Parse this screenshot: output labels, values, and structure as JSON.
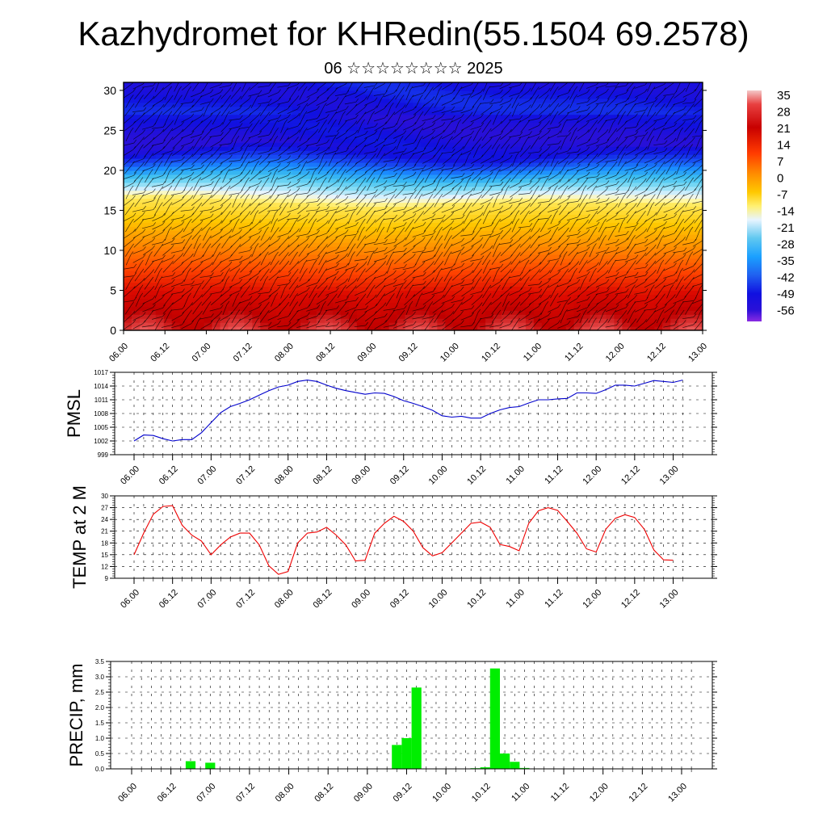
{
  "title": "Kazhydromet for KHRedin(55.1504 69.2578)",
  "subtitle": "06 ☆☆☆☆☆☆☆☆ 2025",
  "time_labels": [
    "06.00",
    "06.12",
    "07.00",
    "07.12",
    "08.00",
    "08.12",
    "09.00",
    "09.12",
    "10.00",
    "10.12",
    "11.00",
    "11.12",
    "12.00",
    "12.12",
    "13.00"
  ],
  "chart_data": [
    {
      "type": "heatmap",
      "title": "",
      "x_ticks": [
        "06.00",
        "06.12",
        "07.00",
        "07.12",
        "08.00",
        "08.12",
        "09.00",
        "09.12",
        "10.00",
        "10.12",
        "11.00",
        "11.12",
        "12.00",
        "12.12",
        "13.00"
      ],
      "y_ticks": [
        "0",
        "5",
        "10",
        "15",
        "20",
        "25",
        "30"
      ],
      "ylim": [
        0,
        31
      ],
      "colorbar_labels": [
        "35",
        "28",
        "21",
        "14",
        "7",
        "0",
        "-7",
        "-14",
        "-21",
        "-28",
        "-35",
        "-42",
        "-49",
        "-56"
      ],
      "value_range": [
        -60,
        38
      ],
      "freezing_level_rows": [
        16.5,
        16.6,
        16.4,
        16.0,
        15.8,
        15.5,
        15.3,
        15.4,
        15.7,
        16.0,
        16.1,
        16.0,
        15.8,
        15.7,
        15.6
      ],
      "upper_cold_rows": [
        22,
        22.5,
        23,
        23.5,
        23.5,
        23,
        22.5,
        22,
        21.5,
        21.5,
        22,
        22.5,
        23,
        23,
        23
      ]
    },
    {
      "type": "line",
      "ylabel": "PMSL",
      "ylim": [
        999,
        1017
      ],
      "y_ticks": [
        "999",
        "1002",
        "1005",
        "1008",
        "1011",
        "1014",
        "1017"
      ],
      "x_ticks": [
        "06.00",
        "06.12",
        "07.00",
        "07.12",
        "08.00",
        "08.12",
        "09.00",
        "09.12",
        "10.00",
        "10.12",
        "11.00",
        "11.12",
        "12.00",
        "12.12",
        "13.00"
      ],
      "color": "#0000cc",
      "values": [
        1002,
        1003.3,
        1003.2,
        1002.5,
        1002,
        1002.3,
        1002.3,
        1003.8,
        1006,
        1008.2,
        1009.5,
        1010.2,
        1011,
        1012,
        1013,
        1013.8,
        1014.2,
        1015,
        1015.3,
        1015,
        1014.2,
        1013.5,
        1013,
        1012.6,
        1012.2,
        1012.5,
        1012.4,
        1011.7,
        1010.8,
        1010.2,
        1009.5,
        1008.7,
        1007.5,
        1007.2,
        1007.4,
        1007,
        1007,
        1008,
        1008.8,
        1009.3,
        1009.5,
        1010.3,
        1011,
        1011,
        1011.2,
        1011.3,
        1012.5,
        1012.5,
        1012.4,
        1013.2,
        1014.2,
        1014.2,
        1014,
        1014.6,
        1015.2,
        1015,
        1014.8,
        1015.3
      ]
    },
    {
      "type": "line",
      "ylabel": "TEMP at 2 M",
      "ylim": [
        9,
        30
      ],
      "y_ticks": [
        "9",
        "12",
        "15",
        "18",
        "21",
        "24",
        "27",
        "30"
      ],
      "x_ticks": [
        "06.00",
        "06.12",
        "07.00",
        "07.12",
        "08.00",
        "08.12",
        "09.00",
        "09.12",
        "10.00",
        "10.12",
        "11.00",
        "11.12",
        "12.00",
        "12.12",
        "13.00"
      ],
      "color": "#ee0000",
      "values": [
        15,
        20.5,
        25.3,
        27.3,
        27.5,
        22.5,
        20,
        18.5,
        15,
        17.5,
        19.5,
        20.5,
        20.5,
        17.5,
        12.2,
        10,
        10.7,
        18,
        20.5,
        20.8,
        22,
        20,
        17.5,
        13.4,
        13.6,
        20.5,
        23,
        24.8,
        23.5,
        21,
        16.8,
        14.7,
        15.5,
        18,
        20.5,
        23,
        23.3,
        22,
        17.6,
        17.1,
        16,
        23,
        26.2,
        27,
        26.3,
        23.5,
        20.5,
        16.5,
        15.7,
        21.5,
        24.3,
        25.2,
        24.5,
        21.5,
        16.2,
        13.7,
        13.6
      ]
    },
    {
      "type": "bar",
      "ylabel": "PRECIP, mm",
      "ylim": [
        0,
        3.5
      ],
      "y_ticks": [
        "0.0",
        "0.5",
        "1.0",
        "1.5",
        "2.0",
        "2.5",
        "3.0",
        "3.5"
      ],
      "x_ticks": [
        "06.00",
        "06.12",
        "07.00",
        "07.12",
        "08.00",
        "08.12",
        "09.00",
        "09.12",
        "10.00",
        "10.12",
        "11.00",
        "11.12",
        "12.00",
        "12.12",
        "13.00"
      ],
      "color": "#00ee00",
      "values": [
        0,
        0,
        0,
        0,
        0,
        0,
        0.25,
        0,
        0.2,
        0,
        0,
        0,
        0,
        0,
        0,
        0,
        0,
        0,
        0,
        0,
        0,
        0,
        0,
        0,
        0,
        0,
        0,
        0.78,
        1.0,
        2.65,
        0,
        0,
        0,
        0,
        0,
        0.02,
        0.05,
        3.27,
        0.5,
        0.23,
        0.03,
        0,
        0,
        0,
        0,
        0,
        0,
        0,
        0,
        0,
        0,
        0,
        0,
        0,
        0,
        0,
        0
      ]
    }
  ]
}
